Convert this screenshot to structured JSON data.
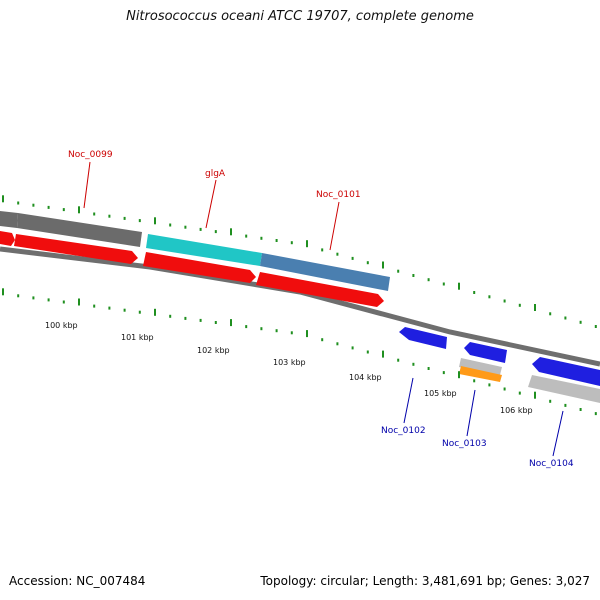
{
  "title": "Nitrosococcus oceani ATCC 19707, complete genome",
  "footer": {
    "accession": "Accession: NC_007484",
    "topology": "Topology: circular; Length: 3,481,691 bp; Genes: 3,027"
  },
  "colors": {
    "backbone": "#7a7a7a",
    "tick": "#1f8f1f",
    "forward_label": "#cc0000",
    "reverse_label": "#0000aa",
    "cds_red": "#f00d0d",
    "gene_dark_gray": "#6b6b6b",
    "gene_cyan": "#20c6c6",
    "gene_steel_blue": "#4a7fb0",
    "gene_blue": "#1f1fe0",
    "gene_light_gray": "#bdbdbd",
    "gene_orange": "#ff9a18"
  },
  "scale_labels": [
    "100 kbp",
    "101 kbp",
    "102 kbp",
    "103 kbp",
    "104 kbp",
    "105 kbp",
    "106 kbp"
  ],
  "gene_labels": {
    "forward": [
      "Noc_0099",
      "glgA",
      "Noc_0101"
    ],
    "reverse": [
      "Noc_0102",
      "Noc_0103",
      "Noc_0104"
    ]
  }
}
